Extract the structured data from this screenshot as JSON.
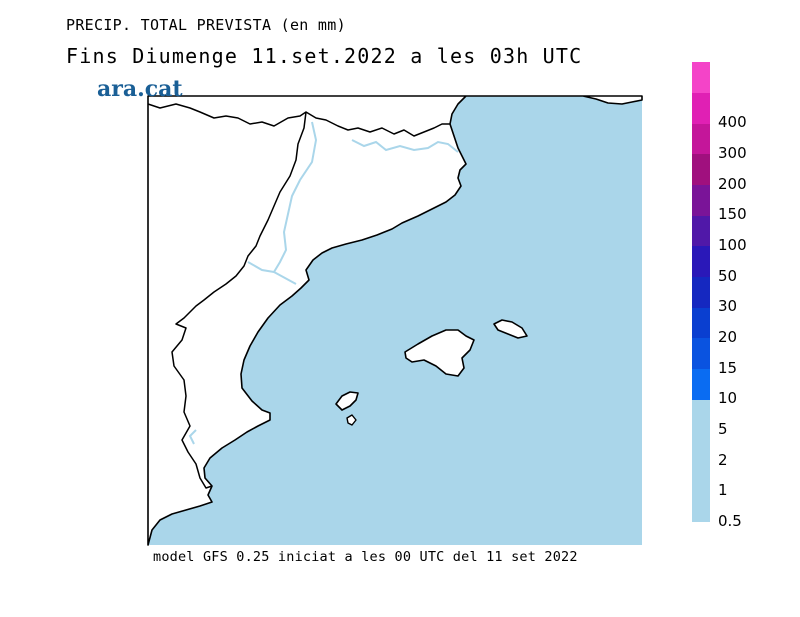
{
  "header": {
    "title": "PRECIP. TOTAL PREVISTA (en mm)",
    "subtitle": "Fins Diumenge 11.set.2022 a les 03h UTC"
  },
  "brand": {
    "logo_text": "ara.cat"
  },
  "footer": {
    "model_note": "model GFS 0.25 iniciat a les 00 UTC del 11 set 2022"
  },
  "map": {
    "sea_color": "#aad6ea",
    "land_color": "#ffffff",
    "coast_color": "#000000",
    "border_color": "#aad6ea",
    "islands": [
      "Mallorca",
      "Menorca",
      "Eivissa",
      "Formentera"
    ]
  },
  "legend": {
    "colors": [
      "#aad6ea",
      "#aad6ea",
      "#aad6ea",
      "#aad6ea",
      "#0a6cf2",
      "#0a53e0",
      "#0a3fd0",
      "#1528c0",
      "#2a18b8",
      "#5018a8",
      "#7a1498",
      "#a0107e",
      "#c4169a",
      "#e020b4",
      "#f444c8"
    ],
    "labels": [
      "0.5",
      "1",
      "2",
      "5",
      "10",
      "15",
      "20",
      "30",
      "50",
      "100",
      "150",
      "200",
      "300",
      "400"
    ]
  }
}
